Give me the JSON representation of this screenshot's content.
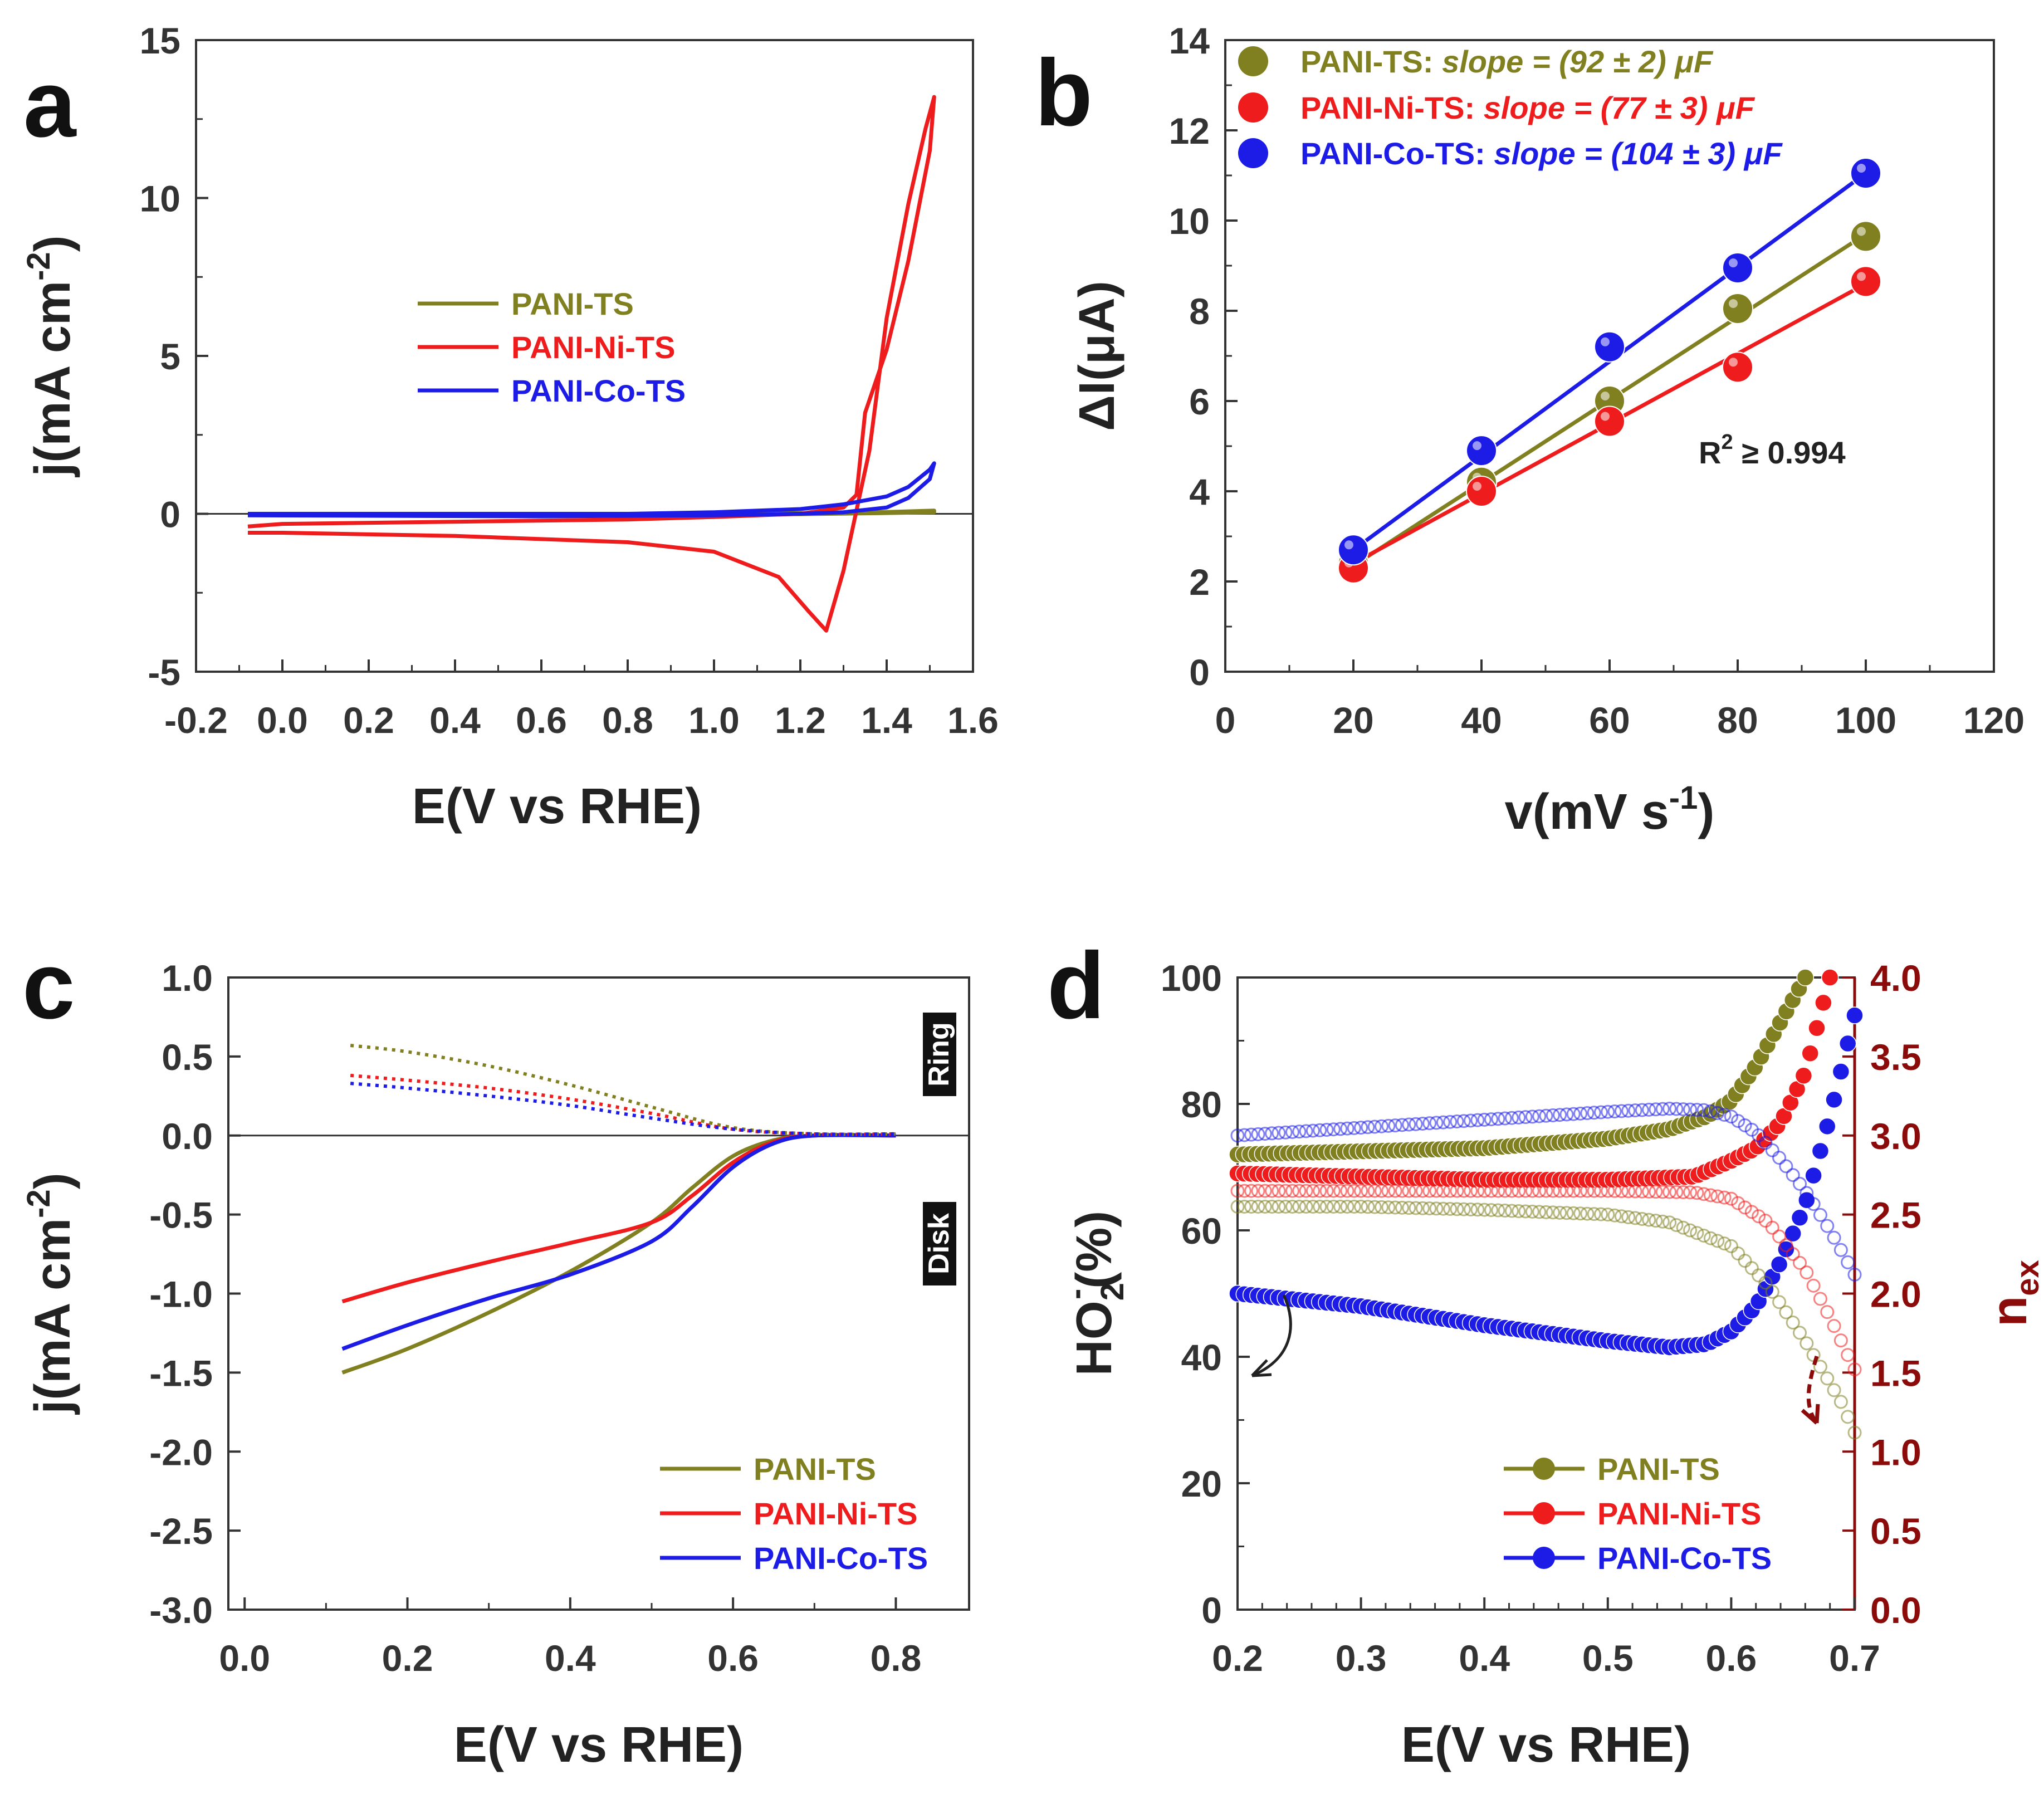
{
  "colors": {
    "olive": "#808020",
    "red": "#ee1c1c",
    "blue": "#1c1ce6",
    "darkred": "#8b0a0a",
    "axis": "#333333"
  },
  "chart_data": [
    {
      "panel": "a",
      "type": "line",
      "xlabel": "E(V vs RHE)",
      "ylabel": "j(mA cm",
      "ylabel_sup": "-2",
      "ylabel_end": ")",
      "xlim": [
        -0.2,
        1.6
      ],
      "ylim": [
        -5,
        15
      ],
      "xticks": [
        -0.2,
        0.0,
        0.2,
        0.4,
        0.6,
        0.8,
        1.0,
        1.2,
        1.4,
        1.6
      ],
      "xtick_labels": [
        "-0.2",
        "0.0",
        "0.2",
        "0.4",
        "0.6",
        "0.8",
        "1.0",
        "1.2",
        "1.4",
        "1.6"
      ],
      "yticks": [
        -5,
        0,
        5,
        10,
        15
      ],
      "ytick_labels": [
        "-5",
        "0",
        "5",
        "10",
        "15"
      ],
      "zero_line": true,
      "legend": [
        "PANI-TS",
        "PANI-Ni-TS",
        "PANI-Co-TS"
      ],
      "series": [
        {
          "name": "PANI-TS",
          "color": "olive",
          "x": [
            -0.08,
            0.4,
            0.8,
            1.2,
            1.38,
            1.51,
            1.51,
            1.38,
            1.2,
            0.8,
            0.4,
            -0.08
          ],
          "y": [
            0.0,
            0.0,
            0.0,
            0.02,
            0.05,
            0.1,
            0.05,
            0.02,
            -0.01,
            -0.02,
            -0.02,
            0.0
          ]
        },
        {
          "name": "PANI-Ni-TS",
          "color": "red",
          "x": [
            -0.08,
            0.0,
            0.4,
            0.8,
            1.0,
            1.2,
            1.3,
            1.33,
            1.35,
            1.4,
            1.45,
            1.5,
            1.51,
            1.49,
            1.45,
            1.4,
            1.36,
            1.3,
            1.26,
            1.22,
            1.15,
            1.0,
            0.8,
            0.4,
            0.0,
            -0.08
          ],
          "y": [
            -0.4,
            -0.32,
            -0.25,
            -0.18,
            -0.1,
            0.0,
            0.2,
            0.6,
            3.2,
            5.2,
            8.0,
            11.5,
            13.2,
            12.2,
            9.8,
            6.2,
            2.0,
            -1.8,
            -3.7,
            -3.1,
            -2.0,
            -1.2,
            -0.9,
            -0.7,
            -0.6,
            -0.6
          ]
        },
        {
          "name": "PANI-Co-TS",
          "color": "blue",
          "x": [
            -0.08,
            0.4,
            0.8,
            1.0,
            1.2,
            1.3,
            1.4,
            1.45,
            1.5,
            1.51,
            1.5,
            1.45,
            1.4,
            1.3,
            1.2,
            1.0,
            0.6,
            -0.08
          ],
          "y": [
            0.0,
            0.0,
            0.0,
            0.05,
            0.15,
            0.3,
            0.55,
            0.85,
            1.4,
            1.6,
            1.1,
            0.5,
            0.2,
            0.05,
            0.0,
            -0.05,
            -0.08,
            -0.05
          ]
        }
      ]
    },
    {
      "panel": "b",
      "type": "scatter",
      "xlabel": "v(mV s",
      "xlabel_sup": "-1",
      "xlabel_end": ")",
      "ylabel": "ΔI(μA)",
      "xlim": [
        0,
        120
      ],
      "ylim": [
        0,
        14
      ],
      "xticks": [
        0,
        20,
        40,
        60,
        80,
        100,
        120
      ],
      "xtick_labels": [
        "0",
        "20",
        "40",
        "60",
        "80",
        "100",
        "120"
      ],
      "yticks": [
        0,
        2,
        4,
        6,
        8,
        10,
        12,
        14
      ],
      "ytick_labels": [
        "0",
        "2",
        "4",
        "6",
        "8",
        "10",
        "12",
        "14"
      ],
      "annotation": {
        "text_r": "R",
        "text_sup": "2",
        "text_ge": " ≥  0.994"
      },
      "series": [
        {
          "name": "PANI-TS",
          "slope_label": "slope = (92 ± 2) μF",
          "color": "olive",
          "x": [
            20,
            40,
            60,
            80,
            100
          ],
          "y": [
            2.4,
            4.2,
            6.0,
            8.05,
            9.65
          ],
          "fit": [
            [
              20,
              2.35
            ],
            [
              100,
              9.7
            ]
          ]
        },
        {
          "name": "PANI-Ni-TS",
          "slope_label": "slope = (77 ± 3) μF",
          "color": "red",
          "x": [
            20,
            40,
            60,
            80,
            100
          ],
          "y": [
            2.3,
            4.0,
            5.55,
            6.75,
            8.65
          ],
          "fit": [
            [
              20,
              2.4
            ],
            [
              100,
              8.6
            ]
          ]
        },
        {
          "name": "PANI-Co-TS",
          "slope_label": "slope = (104 ± 3) μF",
          "color": "blue",
          "x": [
            20,
            40,
            60,
            80,
            100
          ],
          "y": [
            2.7,
            4.9,
            7.2,
            8.95,
            11.05
          ],
          "fit": [
            [
              20,
              2.7
            ],
            [
              100,
              11.05
            ]
          ]
        }
      ]
    },
    {
      "panel": "c",
      "type": "line",
      "xlabel": "E(V vs RHE)",
      "ylabel": "j(mA cm",
      "ylabel_sup": "-2",
      "ylabel_end": ")",
      "xlim": [
        -0.02,
        0.89
      ],
      "ylim": [
        -3.0,
        1.0
      ],
      "xticks": [
        0.0,
        0.2,
        0.4,
        0.6,
        0.8
      ],
      "xtick_labels": [
        "0.0",
        "0.2",
        "0.4",
        "0.6",
        "0.8"
      ],
      "yticks": [
        -3.0,
        -2.5,
        -2.0,
        -1.5,
        -1.0,
        -0.5,
        0.0,
        0.5,
        1.0
      ],
      "ytick_labels": [
        "-3.0",
        "-2.5",
        "-2.0",
        "-1.5",
        "-1.0",
        "-0.5",
        "0.0",
        "0.5",
        "1.0"
      ],
      "zero_line": true,
      "side_labels": [
        "Ring",
        "Disk"
      ],
      "legend": [
        "PANI-TS",
        "PANI-Ni-TS",
        "PANI-Co-TS"
      ],
      "series": [
        {
          "name": "PANI-TS",
          "kind": "disk",
          "color": "olive",
          "x": [
            0.12,
            0.2,
            0.3,
            0.4,
            0.5,
            0.55,
            0.6,
            0.65,
            0.7,
            0.8
          ],
          "y": [
            -1.5,
            -1.35,
            -1.12,
            -0.86,
            -0.55,
            -0.33,
            -0.13,
            -0.03,
            0.0,
            0.0
          ]
        },
        {
          "name": "PANI-Ni-TS",
          "kind": "disk",
          "color": "red",
          "x": [
            0.12,
            0.2,
            0.3,
            0.4,
            0.5,
            0.55,
            0.6,
            0.65,
            0.7,
            0.8
          ],
          "y": [
            -1.05,
            -0.93,
            -0.8,
            -0.68,
            -0.55,
            -0.38,
            -0.17,
            -0.04,
            0.0,
            0.0
          ]
        },
        {
          "name": "PANI-Co-TS",
          "kind": "disk",
          "color": "blue",
          "x": [
            0.12,
            0.2,
            0.3,
            0.4,
            0.5,
            0.55,
            0.6,
            0.65,
            0.7,
            0.8
          ],
          "y": [
            -1.35,
            -1.2,
            -1.03,
            -0.88,
            -0.67,
            -0.45,
            -0.2,
            -0.05,
            0.0,
            0.0
          ]
        },
        {
          "name": "PANI-TS",
          "kind": "ring",
          "color": "olive",
          "x": [
            0.13,
            0.2,
            0.3,
            0.4,
            0.5,
            0.6,
            0.7,
            0.8
          ],
          "y": [
            0.57,
            0.53,
            0.44,
            0.32,
            0.18,
            0.05,
            0.01,
            0.01
          ]
        },
        {
          "name": "PANI-Ni-TS",
          "kind": "ring",
          "color": "red",
          "x": [
            0.13,
            0.2,
            0.3,
            0.4,
            0.5,
            0.6,
            0.7,
            0.8
          ],
          "y": [
            0.38,
            0.35,
            0.3,
            0.23,
            0.14,
            0.04,
            0.01,
            0.01
          ]
        },
        {
          "name": "PANI-Co-TS",
          "kind": "ring",
          "color": "blue",
          "x": [
            0.13,
            0.2,
            0.3,
            0.4,
            0.5,
            0.6,
            0.7,
            0.8
          ],
          "y": [
            0.33,
            0.3,
            0.25,
            0.19,
            0.11,
            0.04,
            0.01,
            0.01
          ]
        }
      ]
    },
    {
      "panel": "d",
      "type": "line",
      "xlabel": "E(V vs RHE)",
      "ylabel_left": "HO",
      "ylabel_left_sub": "2",
      "ylabel_left_sup": "-",
      "ylabel_left_end": "(%)",
      "ylabel_right": "n",
      "ylabel_right_sub": "ex",
      "xlim": [
        0.2,
        0.7
      ],
      "ylim_left": [
        0,
        100
      ],
      "ylim_right": [
        0.0,
        4.0
      ],
      "xticks": [
        0.2,
        0.3,
        0.4,
        0.5,
        0.6,
        0.7
      ],
      "xtick_labels": [
        "0.2",
        "0.3",
        "0.4",
        "0.5",
        "0.6",
        "0.7"
      ],
      "yticks_left": [
        0,
        20,
        40,
        60,
        80,
        100
      ],
      "ytick_labels_left": [
        "0",
        "20",
        "40",
        "60",
        "80",
        "100"
      ],
      "yticks_right": [
        0.0,
        0.5,
        1.0,
        1.5,
        2.0,
        2.5,
        3.0,
        3.5,
        4.0
      ],
      "ytick_labels_right": [
        "0.0",
        "0.5",
        "1.0",
        "1.5",
        "2.0",
        "2.5",
        "3.0",
        "3.5",
        "4.0"
      ],
      "legend": [
        "PANI-TS",
        "PANI-Ni-TS",
        "PANI-Co-TS"
      ],
      "series": [
        {
          "name": "PANI-TS",
          "axis": "left",
          "style": "filled",
          "color": "olive",
          "x": [
            0.2,
            0.3,
            0.4,
            0.5,
            0.55,
            0.58,
            0.6,
            0.62,
            0.64,
            0.66
          ],
          "y": [
            72,
            72.5,
            73,
            74.5,
            76,
            78,
            80.5,
            86,
            93,
            100
          ]
        },
        {
          "name": "PANI-Ni-TS",
          "axis": "left",
          "style": "filled",
          "color": "red",
          "x": [
            0.2,
            0.3,
            0.4,
            0.5,
            0.57,
            0.6,
            0.62,
            0.64,
            0.66,
            0.68
          ],
          "y": [
            69,
            68.5,
            68,
            68,
            68.5,
            71,
            73,
            77,
            85,
            100
          ]
        },
        {
          "name": "PANI-Co-TS",
          "axis": "left",
          "style": "filled",
          "color": "blue",
          "x": [
            0.2,
            0.3,
            0.4,
            0.5,
            0.55,
            0.58,
            0.6,
            0.62,
            0.64,
            0.66,
            0.68,
            0.7
          ],
          "y": [
            50,
            48,
            45,
            42.5,
            41.5,
            42,
            44,
            48,
            55,
            64,
            78,
            94
          ]
        },
        {
          "name": "PANI-TS",
          "axis": "right",
          "style": "open",
          "color": "olive",
          "x": [
            0.2,
            0.3,
            0.4,
            0.5,
            0.55,
            0.6,
            0.63,
            0.66,
            0.69,
            0.7
          ],
          "y": [
            2.55,
            2.55,
            2.53,
            2.5,
            2.45,
            2.3,
            2.05,
            1.7,
            1.3,
            1.12
          ]
        },
        {
          "name": "PANI-Ni-TS",
          "axis": "right",
          "style": "open",
          "color": "red",
          "x": [
            0.2,
            0.3,
            0.4,
            0.5,
            0.57,
            0.6,
            0.63,
            0.66,
            0.68,
            0.7
          ],
          "y": [
            2.65,
            2.65,
            2.65,
            2.65,
            2.64,
            2.6,
            2.45,
            2.15,
            1.85,
            1.52
          ]
        },
        {
          "name": "PANI-Co-TS",
          "axis": "right",
          "style": "open",
          "color": "blue",
          "x": [
            0.2,
            0.3,
            0.4,
            0.5,
            0.55,
            0.58,
            0.6,
            0.62,
            0.64,
            0.66,
            0.68,
            0.7
          ],
          "y": [
            3.0,
            3.05,
            3.1,
            3.15,
            3.17,
            3.16,
            3.12,
            3.02,
            2.85,
            2.65,
            2.4,
            2.12
          ]
        }
      ]
    }
  ]
}
